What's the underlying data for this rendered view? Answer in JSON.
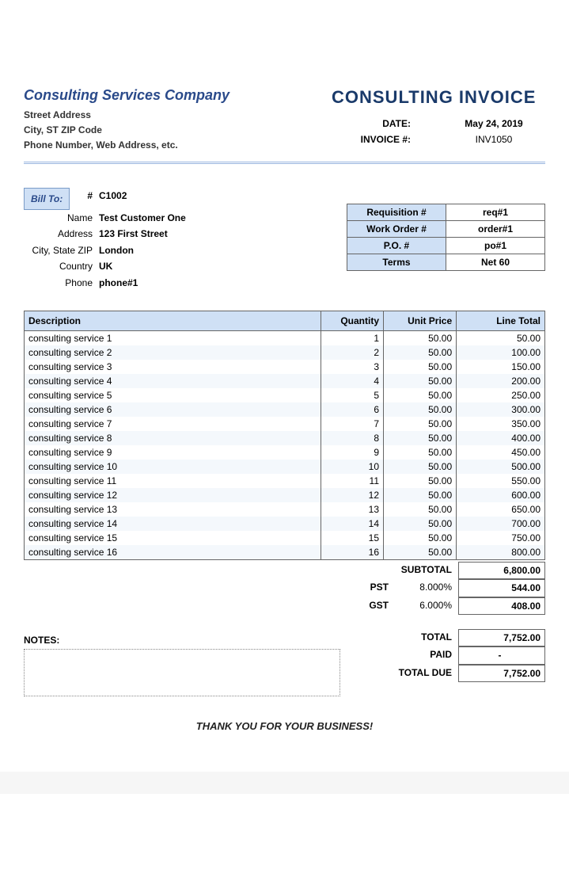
{
  "company": {
    "name": "Consulting Services Company",
    "street": "Street Address",
    "city_zip": "City, ST  ZIP Code",
    "contact": "Phone Number, Web Address, etc."
  },
  "invoice": {
    "title": "CONSULTING INVOICE",
    "date_label": "DATE:",
    "date": "May 24, 2019",
    "num_label": "INVOICE #:",
    "num": "INV1050"
  },
  "billto": {
    "badge": "Bill To:",
    "id_sym": "#",
    "id": "C1002",
    "labels": {
      "name": "Name",
      "address": "Address",
      "csz": "City, State ZIP",
      "country": "Country",
      "phone": "Phone"
    },
    "name": "Test Customer One",
    "address": "123 First Street",
    "csz": "London",
    "country": "UK",
    "phone": "phone#1"
  },
  "order": {
    "labels": {
      "req": "Requisition #",
      "wo": "Work Order #",
      "po": "P.O. #",
      "terms": "Terms"
    },
    "req": "req#1",
    "wo": "order#1",
    "po": "po#1",
    "terms": "Net 60"
  },
  "items": {
    "headers": {
      "desc": "Description",
      "qty": "Quantity",
      "price": "Unit Price",
      "total": "Line Total"
    },
    "rows": [
      {
        "desc": "consulting service 1",
        "qty": "1",
        "price": "50.00",
        "total": "50.00"
      },
      {
        "desc": "consulting service 2",
        "qty": "2",
        "price": "50.00",
        "total": "100.00"
      },
      {
        "desc": "consulting service 3",
        "qty": "3",
        "price": "50.00",
        "total": "150.00"
      },
      {
        "desc": "consulting service 4",
        "qty": "4",
        "price": "50.00",
        "total": "200.00"
      },
      {
        "desc": "consulting service  5",
        "qty": "5",
        "price": "50.00",
        "total": "250.00"
      },
      {
        "desc": "consulting service 6",
        "qty": "6",
        "price": "50.00",
        "total": "300.00"
      },
      {
        "desc": "consulting service 7",
        "qty": "7",
        "price": "50.00",
        "total": "350.00"
      },
      {
        "desc": "consulting service 8",
        "qty": "8",
        "price": "50.00",
        "total": "400.00"
      },
      {
        "desc": "consulting service 9",
        "qty": "9",
        "price": "50.00",
        "total": "450.00"
      },
      {
        "desc": "consulting service 10",
        "qty": "10",
        "price": "50.00",
        "total": "500.00"
      },
      {
        "desc": "consulting service 11",
        "qty": "11",
        "price": "50.00",
        "total": "550.00"
      },
      {
        "desc": "consulting service 12",
        "qty": "12",
        "price": "50.00",
        "total": "600.00"
      },
      {
        "desc": "consulting service 13",
        "qty": "13",
        "price": "50.00",
        "total": "650.00"
      },
      {
        "desc": "consulting service 14",
        "qty": "14",
        "price": "50.00",
        "total": "700.00"
      },
      {
        "desc": "consulting service 15",
        "qty": "15",
        "price": "50.00",
        "total": "750.00"
      },
      {
        "desc": "consulting service 16",
        "qty": "16",
        "price": "50.00",
        "total": "800.00"
      }
    ]
  },
  "totals": {
    "subtotal_label": "SUBTOTAL",
    "subtotal": "6,800.00",
    "pst_label": "PST",
    "pst_pct": "8.000%",
    "pst": "544.00",
    "gst_label": "GST",
    "gst_pct": "6.000%",
    "gst": "408.00",
    "total_label": "TOTAL",
    "total": "7,752.00",
    "paid_label": "PAID",
    "paid": "-",
    "due_label": "TOTAL DUE",
    "due": "7,752.00"
  },
  "notes_label": "NOTES:",
  "thanks": "THANK YOU FOR YOUR BUSINESS!",
  "colors": {
    "accent": "#2a4a8a",
    "header_bg": "#cfe0f5",
    "border": "#666666",
    "stripe": "#f4f8fc",
    "divider": "#9ab6e0"
  }
}
